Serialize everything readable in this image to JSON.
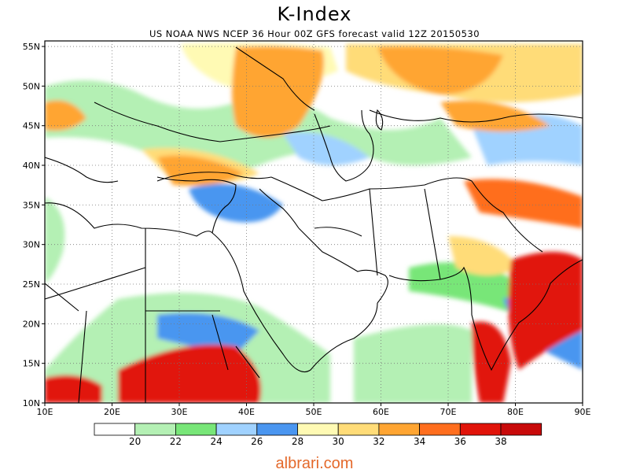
{
  "title": "K-Index",
  "subtitle": "US NOAA NWS NCEP 36 Hour 00Z GFS forecast valid 12Z 20150530",
  "watermark": "albrari.com",
  "axes": {
    "lon_range": [
      10,
      90
    ],
    "lat_range": [
      10,
      55.7
    ],
    "x_tick_labels": [
      "10E",
      "20E",
      "30E",
      "40E",
      "50E",
      "60E",
      "70E",
      "80E",
      "90E"
    ],
    "y_tick_labels": [
      "10N",
      "15N",
      "20N",
      "25N",
      "30N",
      "35N",
      "40N",
      "45N",
      "50N",
      "55N"
    ],
    "grid": "dotted"
  },
  "legend": {
    "labels": [
      "20",
      "22",
      "24",
      "26",
      "28",
      "30",
      "32",
      "34",
      "36",
      "38"
    ],
    "colors": [
      "#ffffff",
      "#b4f0b4",
      "#78e678",
      "#a0d2ff",
      "#4a96f0",
      "#fffab4",
      "#ffdc78",
      "#ffa532",
      "#ff6e1e",
      "#e1140a"
    ]
  },
  "regions": [
    {
      "name": "east-africa-red",
      "color": "#e1140a"
    },
    {
      "name": "india-red",
      "color": "#e1140a"
    },
    {
      "name": "russia-orange",
      "color": "#ffa532"
    },
    {
      "name": "turkey-orange",
      "color": "#ffa532"
    },
    {
      "name": "pakistan-orange",
      "color": "#ff6e1e"
    }
  ]
}
